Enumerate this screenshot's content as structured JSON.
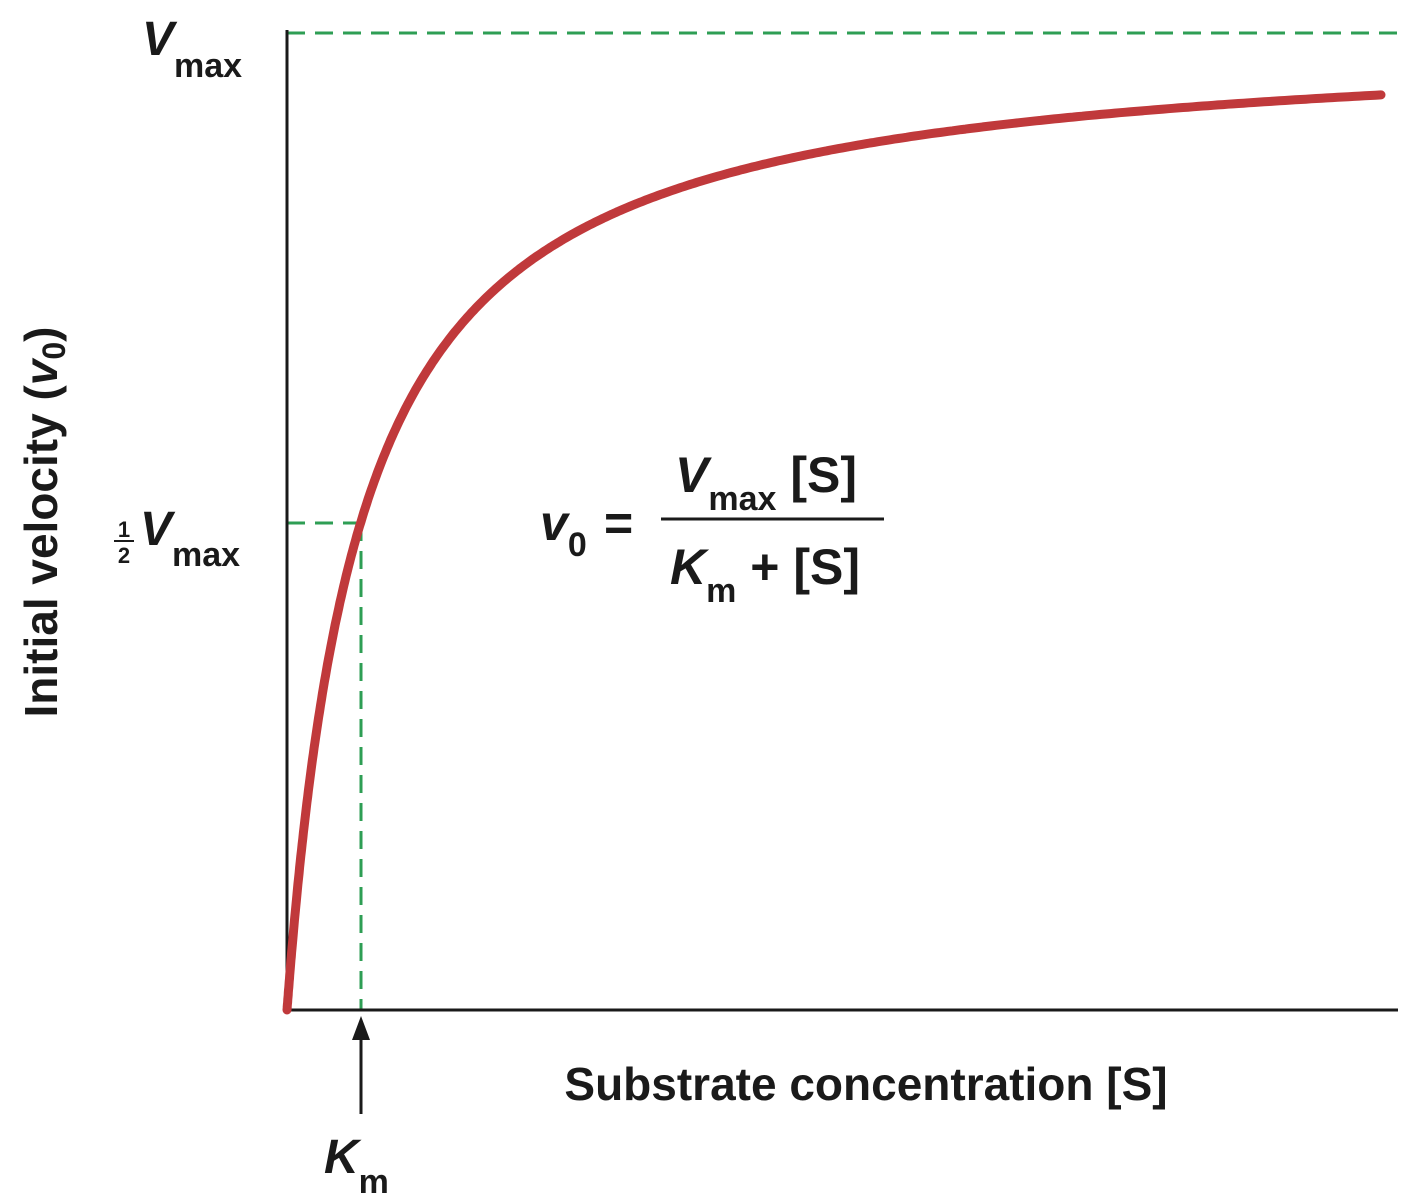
{
  "chart_data": {
    "type": "line",
    "xlabel": "Substrate concentration [S]",
    "ylabel_main": "Initial velocity (",
    "ylabel_var": "v",
    "ylabel_sub": "0",
    "ylabel_close": ")",
    "km_sym": "K",
    "km_sub": "m",
    "vmax_sym": "V",
    "vmax_sub": "max",
    "half_num": "1",
    "half_den": "2",
    "equation": {
      "lhs_sym": "v",
      "lhs_sub": "0",
      "equals": "=",
      "num_sym": "V",
      "num_sub": "max",
      "num_tail": " [S]",
      "den_sym": "K",
      "den_sub": "m",
      "den_tail": " + [S]"
    },
    "model": {
      "Vmax": 1.0,
      "Km": 1.0,
      "s_max": 15.15
    },
    "line_color": "#c0393b",
    "guide_color": "#2e9e54",
    "axis_color": "#1a1a1a"
  }
}
